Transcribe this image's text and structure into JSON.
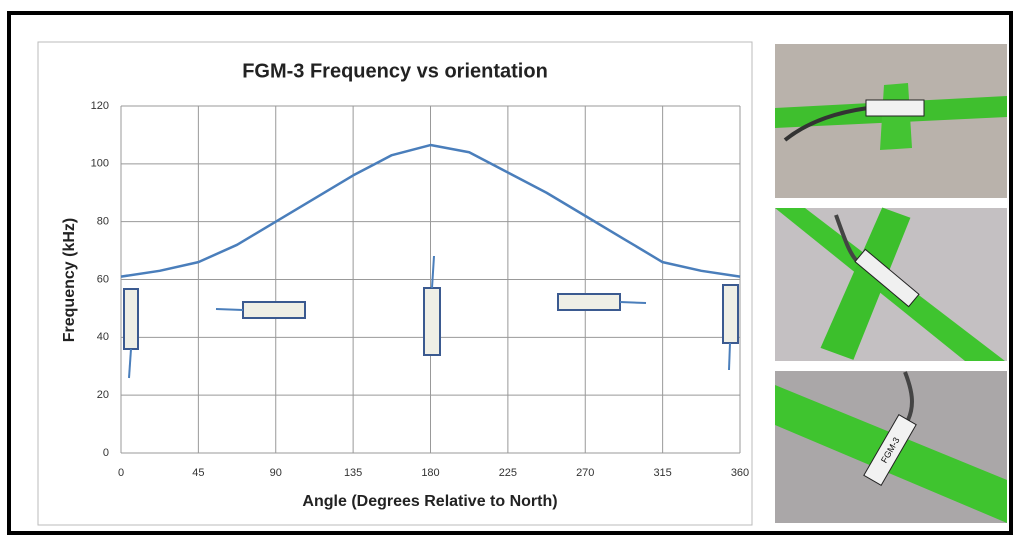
{
  "chart_data": {
    "type": "line",
    "title": "FGM-3 Frequency vs orientation",
    "x_label": "Angle (Degrees Relative to North)",
    "y_label": "Frequency (kHz)",
    "x": [
      0,
      22.5,
      45,
      67.5,
      90,
      112.5,
      135,
      157.5,
      180,
      202.5,
      225,
      247.5,
      270,
      292.5,
      315,
      337.5,
      360
    ],
    "values": [
      61,
      63,
      66,
      72,
      80,
      88,
      96,
      103,
      106.5,
      104,
      97,
      90,
      82,
      74,
      66,
      63,
      61
    ],
    "color": "#4a7ebb",
    "xlim": [
      0,
      360
    ],
    "xticks": [
      0,
      45,
      90,
      135,
      180,
      225,
      270,
      315,
      360
    ],
    "ylim": [
      0,
      120
    ],
    "yticks": [
      0,
      20,
      40,
      60,
      80,
      100,
      120
    ],
    "grid": true
  },
  "photo_text": "FGM-3"
}
